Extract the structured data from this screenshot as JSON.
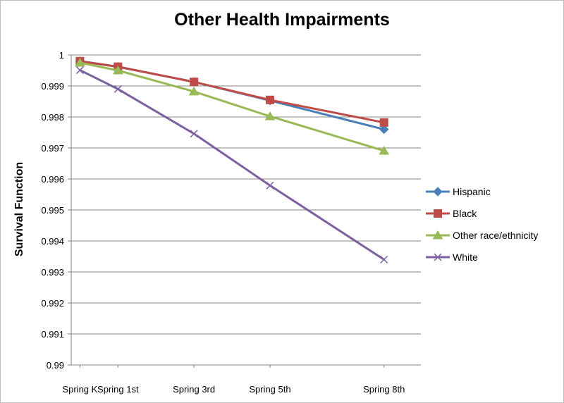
{
  "chart_data": {
    "type": "line",
    "title": "Other Health Impairments",
    "xlabel": "",
    "ylabel": "Survival Function",
    "categories": [
      "Spring K",
      "Spring 1st",
      "Spring 3rd",
      "Spring 5th",
      "Spring 8th"
    ],
    "x": [
      0,
      1,
      3,
      5,
      8
    ],
    "ylim": [
      0.99,
      1
    ],
    "yticks": [
      "0.99",
      "0.991",
      "0.992",
      "0.993",
      "0.994",
      "0.995",
      "0.996",
      "0.997",
      "0.998",
      "0.999",
      "1"
    ],
    "grid": true,
    "legend_position": "right",
    "series": [
      {
        "name": "Hispanic",
        "color": "#4a7ebb",
        "marker": "diamond",
        "values": [
          0.9998,
          0.99962,
          0.99913,
          0.99853,
          0.9976
        ]
      },
      {
        "name": "Black",
        "color": "#be4b48",
        "marker": "square",
        "values": [
          0.9998,
          0.99962,
          0.99913,
          0.99855,
          0.99782
        ]
      },
      {
        "name": "Other race/ethnicity",
        "color": "#98b954",
        "marker": "triangle",
        "values": [
          0.99975,
          0.9995,
          0.99882,
          0.99802,
          0.99691
        ]
      },
      {
        "name": "White",
        "color": "#7d60a0",
        "marker": "x",
        "values": [
          0.99951,
          0.9989,
          0.99746,
          0.99579,
          0.9934
        ]
      }
    ]
  }
}
